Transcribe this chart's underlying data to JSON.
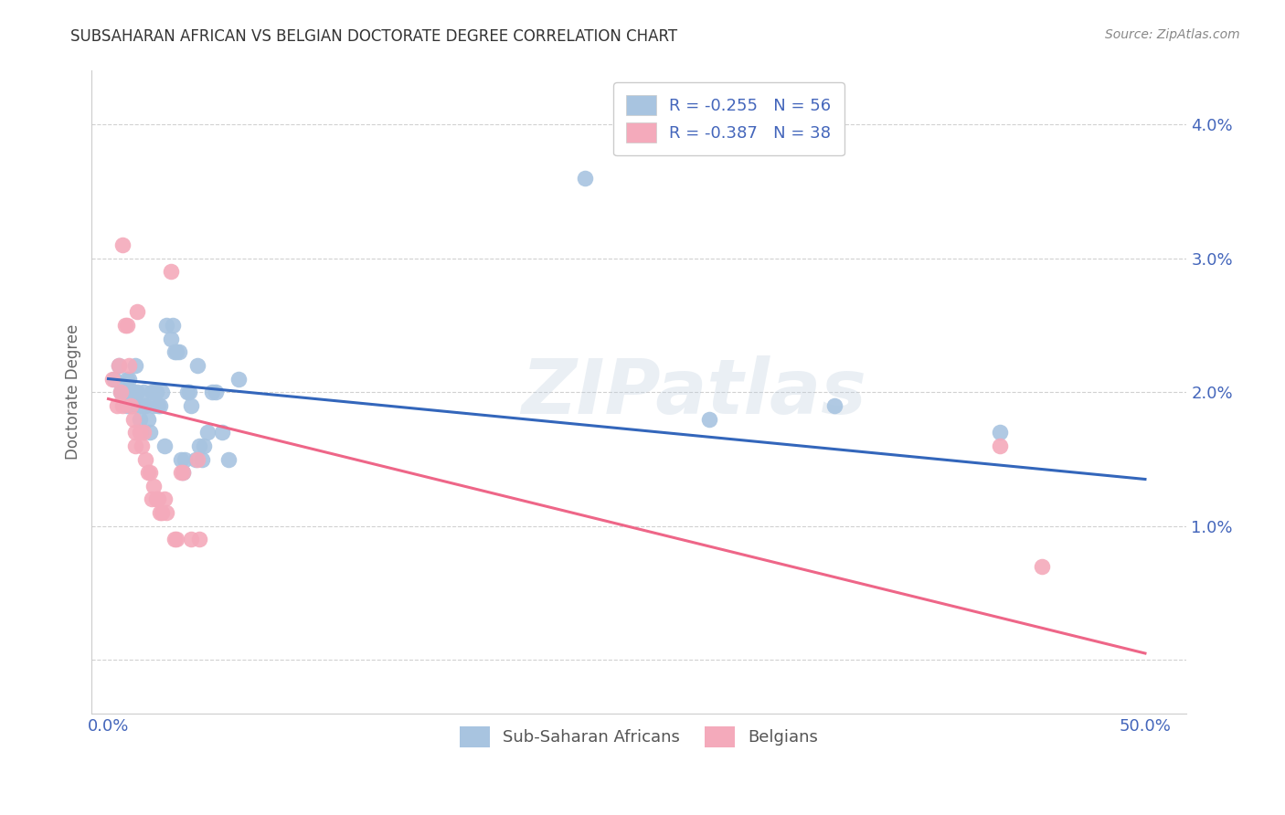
{
  "title": "SUBSAHARAN AFRICAN VS BELGIAN DOCTORATE DEGREE CORRELATION CHART",
  "source": "Source: ZipAtlas.com",
  "ylabel": "Doctorate Degree",
  "yticks": [
    0.0,
    0.01,
    0.02,
    0.03,
    0.04
  ],
  "ytick_labels": [
    "",
    "1.0%",
    "2.0%",
    "3.0%",
    "4.0%"
  ],
  "xticks": [
    0.0,
    0.1,
    0.2,
    0.3,
    0.4,
    0.5
  ],
  "xtick_labels": [
    "0.0%",
    "",
    "",
    "",
    "",
    "50.0%"
  ],
  "xlim": [
    -0.008,
    0.52
  ],
  "ylim": [
    -0.004,
    0.044
  ],
  "watermark": "ZIPatlas",
  "legend_r1": "-0.255",
  "legend_n1": "56",
  "legend_r2": "-0.387",
  "legend_n2": "38",
  "legend_label1": "Sub-Saharan Africans",
  "legend_label2": "Belgians",
  "blue_color": "#A8C4E0",
  "pink_color": "#F4AABB",
  "blue_line_color": "#3366BB",
  "pink_line_color": "#EE6688",
  "blue_scatter": [
    [
      0.003,
      0.021
    ],
    [
      0.005,
      0.022
    ],
    [
      0.006,
      0.02
    ],
    [
      0.007,
      0.02
    ],
    [
      0.008,
      0.02
    ],
    [
      0.009,
      0.021
    ],
    [
      0.009,
      0.019
    ],
    [
      0.01,
      0.021
    ],
    [
      0.01,
      0.02
    ],
    [
      0.011,
      0.019
    ],
    [
      0.012,
      0.02
    ],
    [
      0.012,
      0.019
    ],
    [
      0.013,
      0.022
    ],
    [
      0.014,
      0.02
    ],
    [
      0.015,
      0.018
    ],
    [
      0.016,
      0.019
    ],
    [
      0.017,
      0.02
    ],
    [
      0.017,
      0.019
    ],
    [
      0.018,
      0.019
    ],
    [
      0.019,
      0.018
    ],
    [
      0.02,
      0.017
    ],
    [
      0.021,
      0.02
    ],
    [
      0.022,
      0.02
    ],
    [
      0.022,
      0.019
    ],
    [
      0.023,
      0.02
    ],
    [
      0.024,
      0.019
    ],
    [
      0.025,
      0.019
    ],
    [
      0.026,
      0.02
    ],
    [
      0.027,
      0.016
    ],
    [
      0.028,
      0.025
    ],
    [
      0.03,
      0.024
    ],
    [
      0.031,
      0.025
    ],
    [
      0.032,
      0.023
    ],
    [
      0.033,
      0.023
    ],
    [
      0.034,
      0.023
    ],
    [
      0.035,
      0.015
    ],
    [
      0.036,
      0.014
    ],
    [
      0.037,
      0.015
    ],
    [
      0.038,
      0.02
    ],
    [
      0.039,
      0.02
    ],
    [
      0.04,
      0.019
    ],
    [
      0.042,
      0.015
    ],
    [
      0.043,
      0.022
    ],
    [
      0.044,
      0.016
    ],
    [
      0.045,
      0.015
    ],
    [
      0.046,
      0.016
    ],
    [
      0.048,
      0.017
    ],
    [
      0.05,
      0.02
    ],
    [
      0.052,
      0.02
    ],
    [
      0.055,
      0.017
    ],
    [
      0.058,
      0.015
    ],
    [
      0.063,
      0.021
    ],
    [
      0.23,
      0.036
    ],
    [
      0.29,
      0.018
    ],
    [
      0.35,
      0.019
    ],
    [
      0.43,
      0.017
    ]
  ],
  "pink_scatter": [
    [
      0.002,
      0.021
    ],
    [
      0.004,
      0.019
    ],
    [
      0.005,
      0.022
    ],
    [
      0.006,
      0.02
    ],
    [
      0.007,
      0.019
    ],
    [
      0.007,
      0.031
    ],
    [
      0.008,
      0.025
    ],
    [
      0.009,
      0.025
    ],
    [
      0.01,
      0.022
    ],
    [
      0.011,
      0.019
    ],
    [
      0.012,
      0.018
    ],
    [
      0.013,
      0.017
    ],
    [
      0.013,
      0.016
    ],
    [
      0.014,
      0.026
    ],
    [
      0.015,
      0.017
    ],
    [
      0.016,
      0.016
    ],
    [
      0.017,
      0.017
    ],
    [
      0.018,
      0.015
    ],
    [
      0.019,
      0.014
    ],
    [
      0.02,
      0.014
    ],
    [
      0.021,
      0.012
    ],
    [
      0.022,
      0.013
    ],
    [
      0.023,
      0.012
    ],
    [
      0.024,
      0.012
    ],
    [
      0.025,
      0.011
    ],
    [
      0.026,
      0.011
    ],
    [
      0.027,
      0.012
    ],
    [
      0.028,
      0.011
    ],
    [
      0.03,
      0.029
    ],
    [
      0.032,
      0.009
    ],
    [
      0.033,
      0.009
    ],
    [
      0.035,
      0.014
    ],
    [
      0.036,
      0.014
    ],
    [
      0.04,
      0.009
    ],
    [
      0.043,
      0.015
    ],
    [
      0.044,
      0.009
    ],
    [
      0.43,
      0.016
    ],
    [
      0.45,
      0.007
    ]
  ],
  "blue_line_x": [
    0.0,
    0.5
  ],
  "blue_line_y": [
    0.021,
    0.0135
  ],
  "pink_line_x": [
    0.0,
    0.5
  ],
  "pink_line_y": [
    0.0195,
    0.0005
  ],
  "background_color": "#FFFFFF",
  "grid_color": "#CCCCCC",
  "title_color": "#333333",
  "axis_color": "#4466BB"
}
